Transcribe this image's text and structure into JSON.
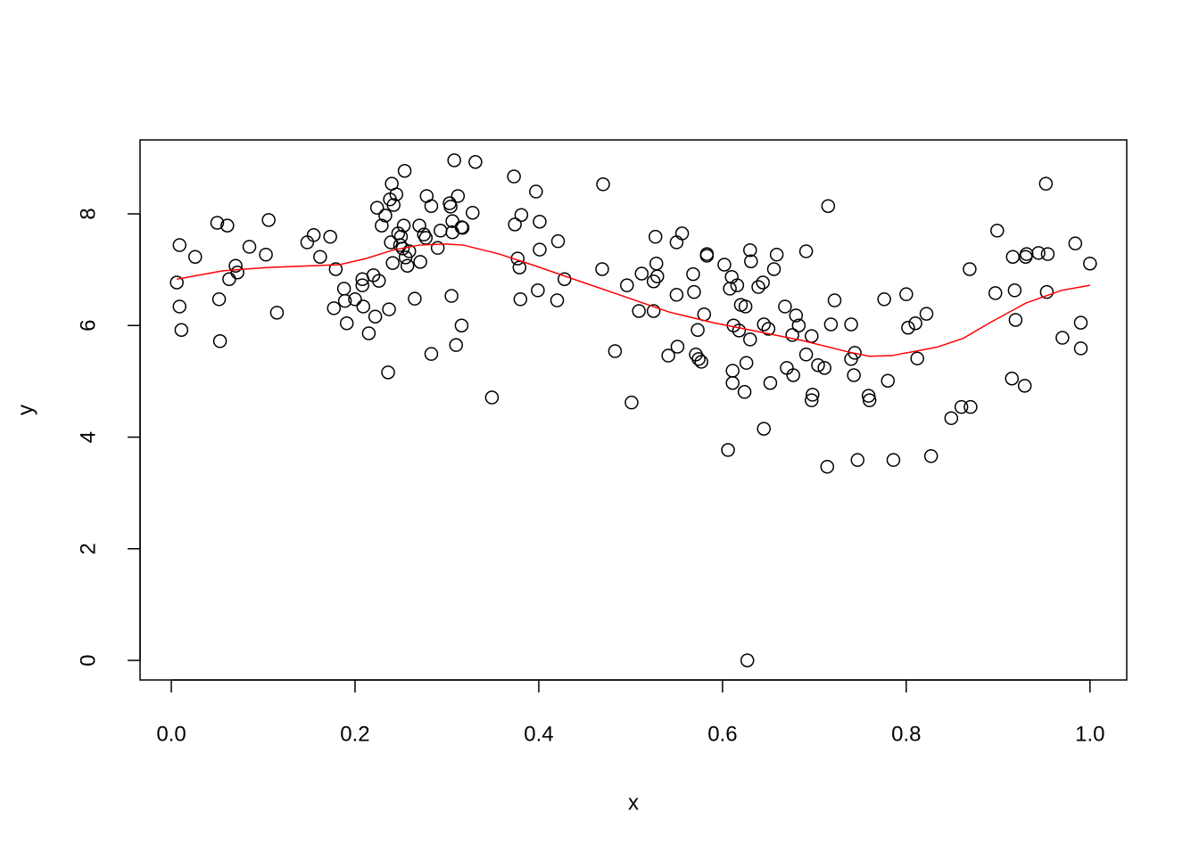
{
  "chart_data": {
    "type": "scatter",
    "xlabel": "x",
    "ylabel": "y",
    "xlim": [
      -0.034,
      1.04
    ],
    "ylim": [
      -0.351,
      9.325
    ],
    "xticks": [
      {
        "value": 0,
        "label": "0.0"
      },
      0.2,
      0.4,
      0.6,
      0.8,
      {
        "value": 1,
        "label": "1.0"
      }
    ],
    "yticks": [
      0,
      2,
      4,
      6,
      8
    ],
    "points": {
      "color": "#000000",
      "x": [
        0.006,
        0.009,
        0.009,
        0.011,
        0.026,
        0.05,
        0.052,
        0.053,
        0.061,
        0.063,
        0.07,
        0.072,
        0.085,
        0.103,
        0.106,
        0.115,
        0.148,
        0.155,
        0.162,
        0.173,
        0.177,
        0.179,
        0.188,
        0.189,
        0.191,
        0.2,
        0.208,
        0.208,
        0.209,
        0.215,
        0.22,
        0.222,
        0.224,
        0.226,
        0.229,
        0.233,
        0.236,
        0.237,
        0.238,
        0.239,
        0.24,
        0.241,
        0.242,
        0.245,
        0.247,
        0.249,
        0.25,
        0.252,
        0.253,
        0.254,
        0.255,
        0.257,
        0.259,
        0.265,
        0.27,
        0.271,
        0.275,
        0.277,
        0.278,
        0.283,
        0.283,
        0.29,
        0.293,
        0.303,
        0.304,
        0.305,
        0.306,
        0.306,
        0.308,
        0.31,
        0.312,
        0.316,
        0.316,
        0.317,
        0.328,
        0.331,
        0.349,
        0.373,
        0.374,
        0.377,
        0.379,
        0.38,
        0.381,
        0.397,
        0.401,
        0.401,
        0.399,
        0.42,
        0.421,
        0.428,
        0.469,
        0.47,
        0.483,
        0.496,
        0.501,
        0.509,
        0.512,
        0.525,
        0.527,
        0.528,
        0.529,
        0.525,
        0.541,
        0.55,
        0.55,
        0.551,
        0.556,
        0.568,
        0.569,
        0.571,
        0.573,
        0.574,
        0.577,
        0.58,
        0.583,
        0.583,
        0.602,
        0.606,
        0.608,
        0.61,
        0.611,
        0.611,
        0.612,
        0.616,
        0.618,
        0.62,
        0.624,
        0.625,
        0.626,
        0.627,
        0.63,
        0.63,
        0.631,
        0.639,
        0.644,
        0.645,
        0.645,
        0.65,
        0.652,
        0.656,
        0.659,
        0.668,
        0.67,
        0.676,
        0.677,
        0.68,
        0.683,
        0.691,
        0.691,
        0.697,
        0.697,
        0.698,
        0.704,
        0.711,
        0.714,
        0.715,
        0.718,
        0.722,
        0.74,
        0.74,
        0.743,
        0.744,
        0.747,
        0.759,
        0.76,
        0.776,
        0.78,
        0.786,
        0.8,
        0.802,
        0.81,
        0.812,
        0.822,
        0.827,
        0.849,
        0.86,
        0.87,
        0.869,
        0.897,
        0.899,
        0.915,
        0.916,
        0.918,
        0.919,
        0.929,
        0.93,
        0.931,
        0.944,
        0.952,
        0.954,
        0.953,
        0.97,
        0.984,
        0.99,
        0.99,
        1.0
      ],
      "y": [
        6.77,
        7.44,
        6.34,
        5.92,
        7.23,
        7.84,
        6.47,
        5.72,
        7.79,
        6.83,
        7.07,
        6.95,
        7.41,
        7.27,
        7.89,
        6.23,
        7.49,
        7.62,
        7.23,
        7.59,
        6.31,
        7.01,
        6.66,
        6.44,
        6.04,
        6.47,
        6.83,
        6.72,
        6.34,
        5.86,
        6.9,
        6.16,
        8.11,
        6.8,
        7.79,
        7.97,
        5.16,
        6.29,
        8.26,
        7.49,
        8.54,
        7.12,
        8.16,
        8.35,
        7.65,
        7.44,
        7.59,
        7.38,
        7.79,
        8.77,
        7.22,
        7.07,
        7.33,
        6.48,
        7.79,
        7.14,
        7.63,
        7.57,
        8.32,
        5.49,
        8.14,
        7.39,
        7.7,
        8.19,
        8.13,
        6.53,
        7.67,
        7.87,
        8.96,
        5.65,
        8.32,
        7.76,
        6.0,
        7.75,
        8.02,
        8.93,
        4.71,
        8.67,
        7.81,
        7.2,
        7.04,
        6.47,
        7.98,
        8.4,
        7.86,
        7.36,
        6.63,
        6.45,
        7.51,
        6.83,
        7.01,
        8.53,
        5.54,
        6.72,
        4.62,
        6.26,
        6.93,
        6.79,
        7.59,
        7.11,
        6.88,
        6.26,
        5.46,
        7.49,
        6.55,
        5.62,
        7.65,
        6.92,
        6.6,
        5.48,
        5.92,
        5.4,
        5.35,
        6.2,
        7.28,
        7.25,
        7.09,
        3.77,
        6.66,
        6.87,
        5.19,
        4.97,
        6.0,
        6.72,
        5.91,
        6.37,
        4.81,
        6.34,
        5.33,
        0.0,
        5.75,
        7.35,
        7.15,
        6.69,
        6.77,
        6.02,
        4.15,
        5.94,
        4.97,
        7.01,
        7.27,
        6.34,
        5.24,
        5.83,
        5.11,
        6.18,
        6.0,
        5.48,
        7.33,
        5.81,
        4.66,
        4.76,
        5.29,
        5.24,
        3.47,
        8.14,
        6.02,
        6.45,
        6.02,
        5.4,
        5.11,
        5.51,
        3.59,
        4.74,
        4.66,
        6.47,
        5.01,
        3.59,
        6.56,
        5.96,
        6.04,
        5.41,
        6.21,
        3.66,
        4.34,
        4.54,
        4.54,
        7.01,
        6.58,
        7.7,
        5.05,
        7.23,
        6.63,
        6.1,
        4.92,
        7.23,
        7.28,
        7.3,
        8.54,
        7.28,
        6.6,
        5.78,
        7.47,
        6.05,
        5.59,
        7.11
      ]
    },
    "smooth": {
      "color": "#ff0000",
      "x": [
        0.006,
        0.056,
        0.105,
        0.183,
        0.212,
        0.241,
        0.27,
        0.299,
        0.318,
        0.357,
        0.396,
        0.445,
        0.493,
        0.542,
        0.59,
        0.639,
        0.687,
        0.736,
        0.76,
        0.784,
        0.833,
        0.862,
        0.891,
        0.93,
        0.969,
        1.0
      ],
      "y": [
        6.83,
        6.98,
        7.04,
        7.09,
        7.2,
        7.35,
        7.44,
        7.46,
        7.44,
        7.28,
        7.07,
        6.79,
        6.52,
        6.24,
        6.05,
        5.89,
        5.73,
        5.53,
        5.45,
        5.46,
        5.61,
        5.77,
        6.05,
        6.4,
        6.63,
        6.72
      ]
    }
  }
}
